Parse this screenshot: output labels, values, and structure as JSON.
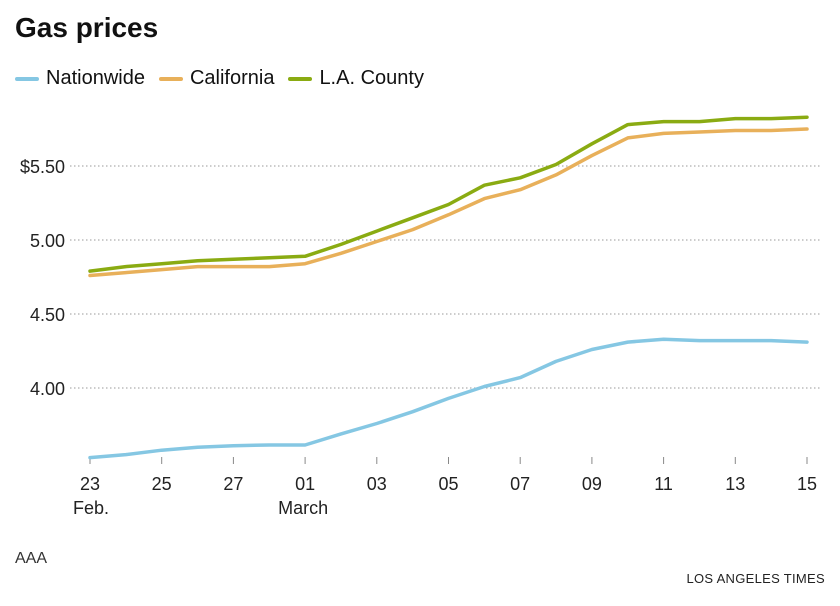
{
  "chart_data": {
    "type": "line",
    "title": "Gas prices",
    "x": [
      "Feb 23",
      "Feb 24",
      "Feb 25",
      "Feb 26",
      "Feb 27",
      "Feb 28",
      "Mar 01",
      "Mar 02",
      "Mar 03",
      "Mar 04",
      "Mar 05",
      "Mar 06",
      "Mar 07",
      "Mar 08",
      "Mar 09",
      "Mar 10",
      "Mar 11",
      "Mar 12",
      "Mar 13",
      "Mar 14",
      "Mar 15"
    ],
    "x_tick_labels": [
      "23",
      "25",
      "27",
      "01",
      "03",
      "05",
      "07",
      "09",
      "11",
      "13",
      "15"
    ],
    "x_tick_sublabels": {
      "23": "Feb.",
      "01": "March"
    },
    "y_tick_labels": [
      "$5.50",
      "5.00",
      "4.50",
      "4.00"
    ],
    "y_ticks": [
      5.5,
      5.0,
      4.5,
      4.0
    ],
    "ylim": [
      3.5,
      5.9
    ],
    "grid": "horizontal dotted",
    "legend": "top-left",
    "series": [
      {
        "name": "Nationwide",
        "color": "#85c7e3",
        "values": [
          3.53,
          3.55,
          3.58,
          3.6,
          3.61,
          3.615,
          3.615,
          3.69,
          3.76,
          3.84,
          3.93,
          4.01,
          4.07,
          4.18,
          4.26,
          4.31,
          4.33,
          4.32,
          4.32,
          4.32,
          4.31
        ]
      },
      {
        "name": "California",
        "color": "#e8b05a",
        "values": [
          4.76,
          4.78,
          4.8,
          4.82,
          4.82,
          4.82,
          4.84,
          4.91,
          4.99,
          5.07,
          5.17,
          5.28,
          5.34,
          5.44,
          5.57,
          5.69,
          5.72,
          5.73,
          5.74,
          5.74,
          5.75
        ]
      },
      {
        "name": "L.A. County",
        "color": "#8aab12",
        "values": [
          4.79,
          4.82,
          4.84,
          4.86,
          4.87,
          4.88,
          4.89,
          4.97,
          5.06,
          5.15,
          5.24,
          5.37,
          5.42,
          5.51,
          5.65,
          5.78,
          5.8,
          5.8,
          5.82,
          5.82,
          5.83
        ]
      }
    ]
  },
  "source": "AAA",
  "credit": "LOS ANGELES TIMES"
}
